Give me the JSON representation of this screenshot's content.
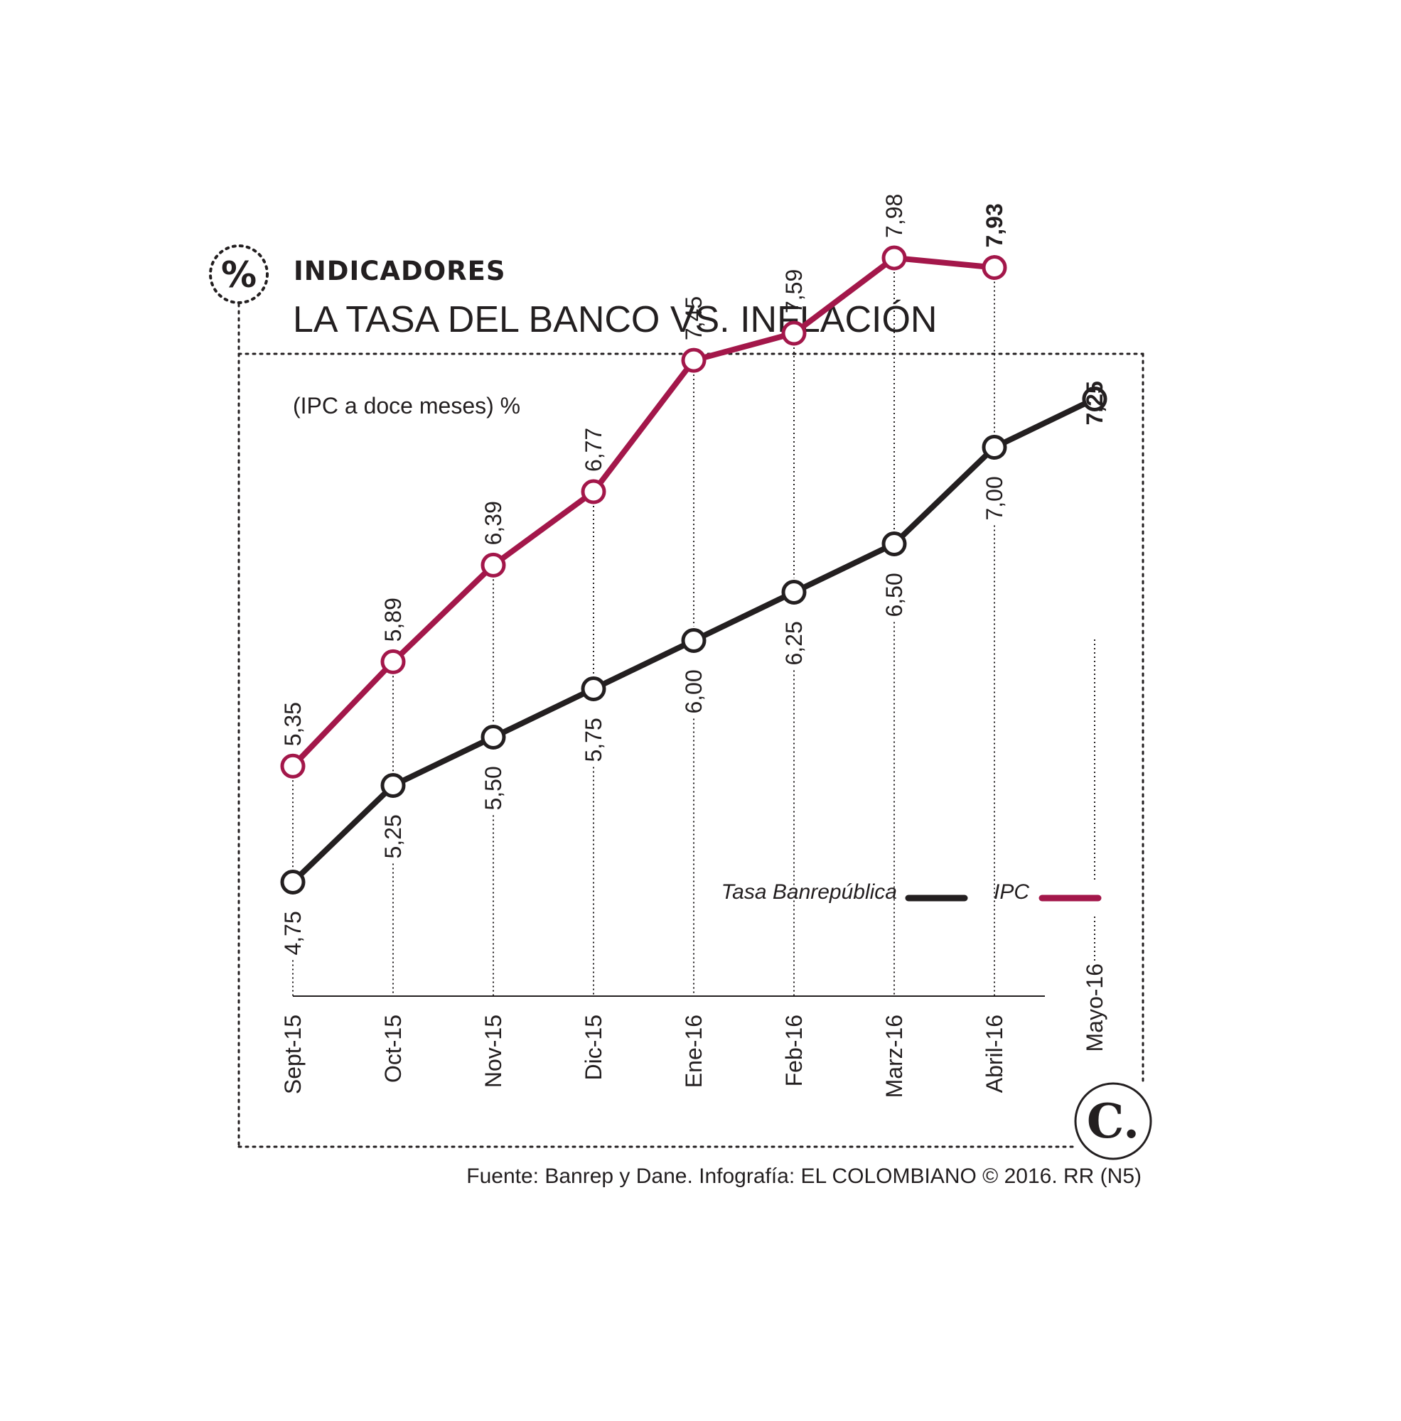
{
  "header": {
    "kicker": "INDICADORES",
    "title": "LA TASA DEL BANCO VS. INFLACIÓN",
    "icon": "percent-icon",
    "icon_glyph": "%"
  },
  "footer": {
    "source": "Fuente: Banrep y Dane. Infografía: EL COLOMBIANO © 2016. RR (N5)",
    "logo_icon": "el-colombiano-logo-icon",
    "logo_letter": "C."
  },
  "colors": {
    "ipc": "#a3174a",
    "tasa": "#231f20",
    "text": "#231f20",
    "background": "#ffffff"
  },
  "chart_data": {
    "type": "line",
    "title": "",
    "ylabel": "(IPC a doce meses) %",
    "xlabel": "",
    "ylim": [
      4.5,
      8.5
    ],
    "grid": "dotted vertical lines at each category",
    "legend_placement": "bottom-right",
    "categories": [
      "Sept-15",
      "Oct-15",
      "Nov-15",
      "Dic-15",
      "Ene-16",
      "Feb-16",
      "Marz-16",
      "Abril-16",
      "Mayo-16"
    ],
    "series": [
      {
        "name": "Tasa Banrepública",
        "color": "#231f20",
        "values": [
          4.75,
          5.25,
          5.5,
          5.75,
          6.0,
          6.25,
          6.5,
          7.0,
          7.25
        ],
        "labels": [
          "4,75",
          "5,25",
          "5,50",
          "5,75",
          "6,00",
          "6,25",
          "6,50",
          "7,00",
          "7,25"
        ]
      },
      {
        "name": "IPC",
        "color": "#a3174a",
        "values": [
          5.35,
          5.89,
          6.39,
          6.77,
          7.45,
          7.59,
          7.98,
          7.93,
          null
        ],
        "labels": [
          "5,35",
          "5,89",
          "6,39",
          "6,77",
          "7,45",
          "7,59",
          "7,98",
          "7,93",
          null
        ]
      }
    ]
  }
}
